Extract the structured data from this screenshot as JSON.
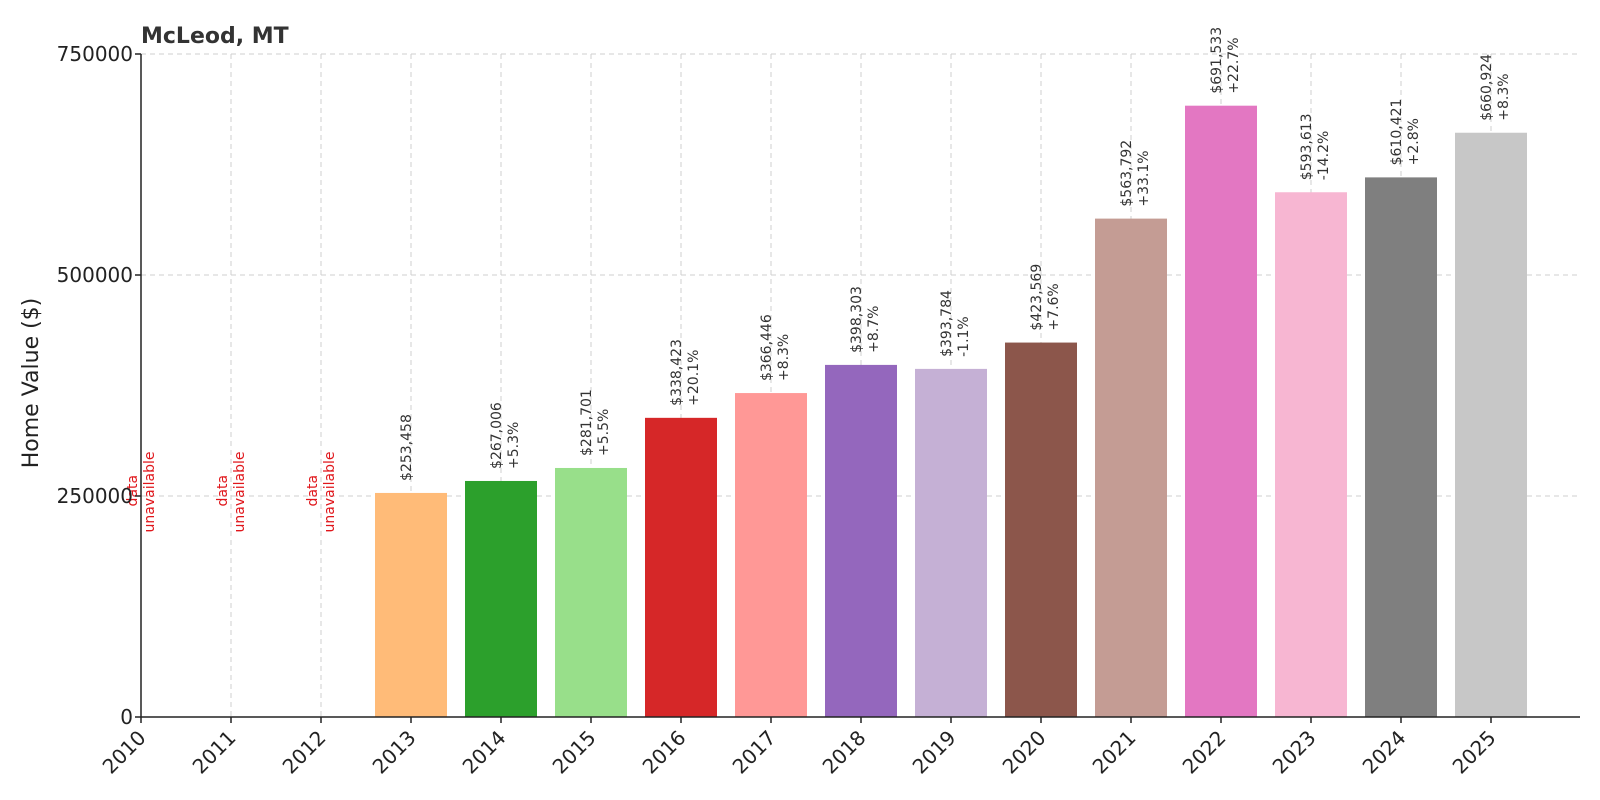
{
  "chart_data": {
    "type": "bar",
    "title": "McLeod, MT",
    "xlabel": "",
    "ylabel": "Home Value ($)",
    "ylim": [
      0,
      750000
    ],
    "yticks": [
      0,
      250000,
      500000,
      750000
    ],
    "ytick_labels": [
      "0",
      "250000",
      "500000",
      "750000"
    ],
    "grid": true,
    "categories": [
      "2010",
      "2011",
      "2012",
      "2013",
      "2014",
      "2015",
      "2016",
      "2017",
      "2018",
      "2019",
      "2020",
      "2021",
      "2022",
      "2023",
      "2024",
      "2025"
    ],
    "values": [
      null,
      null,
      null,
      253458,
      267006,
      281701,
      338423,
      366446,
      398303,
      393784,
      423569,
      563792,
      691533,
      593613,
      610421,
      660924
    ],
    "value_labels": [
      "",
      "",
      "",
      "$253,458",
      "$267,006",
      "$281,701",
      "$338,423",
      "$366,446",
      "$398,303",
      "$393,784",
      "$423,569",
      "$563,792",
      "$691,533",
      "$593,613",
      "$610,421",
      "$660,924"
    ],
    "change_labels": [
      "",
      "",
      "",
      "",
      "+5.3%",
      "+5.5%",
      "+20.1%",
      "+8.3%",
      "+8.7%",
      "-1.1%",
      "+7.6%",
      "+33.1%",
      "+22.7%",
      "-14.2%",
      "+2.8%",
      "+8.3%"
    ],
    "missing_label": [
      "data",
      "unavailable"
    ],
    "colors": [
      "#1f77b4",
      "#aec7e8",
      "#ff7f0e",
      "#ffbb78",
      "#2ca02c",
      "#98df8a",
      "#d62728",
      "#ff9896",
      "#9467bd",
      "#c5b0d5",
      "#8c564b",
      "#c49c94",
      "#e377c2",
      "#f7b6d2",
      "#7f7f7f",
      "#c7c7c7"
    ],
    "missing_color": "#e0161b"
  }
}
